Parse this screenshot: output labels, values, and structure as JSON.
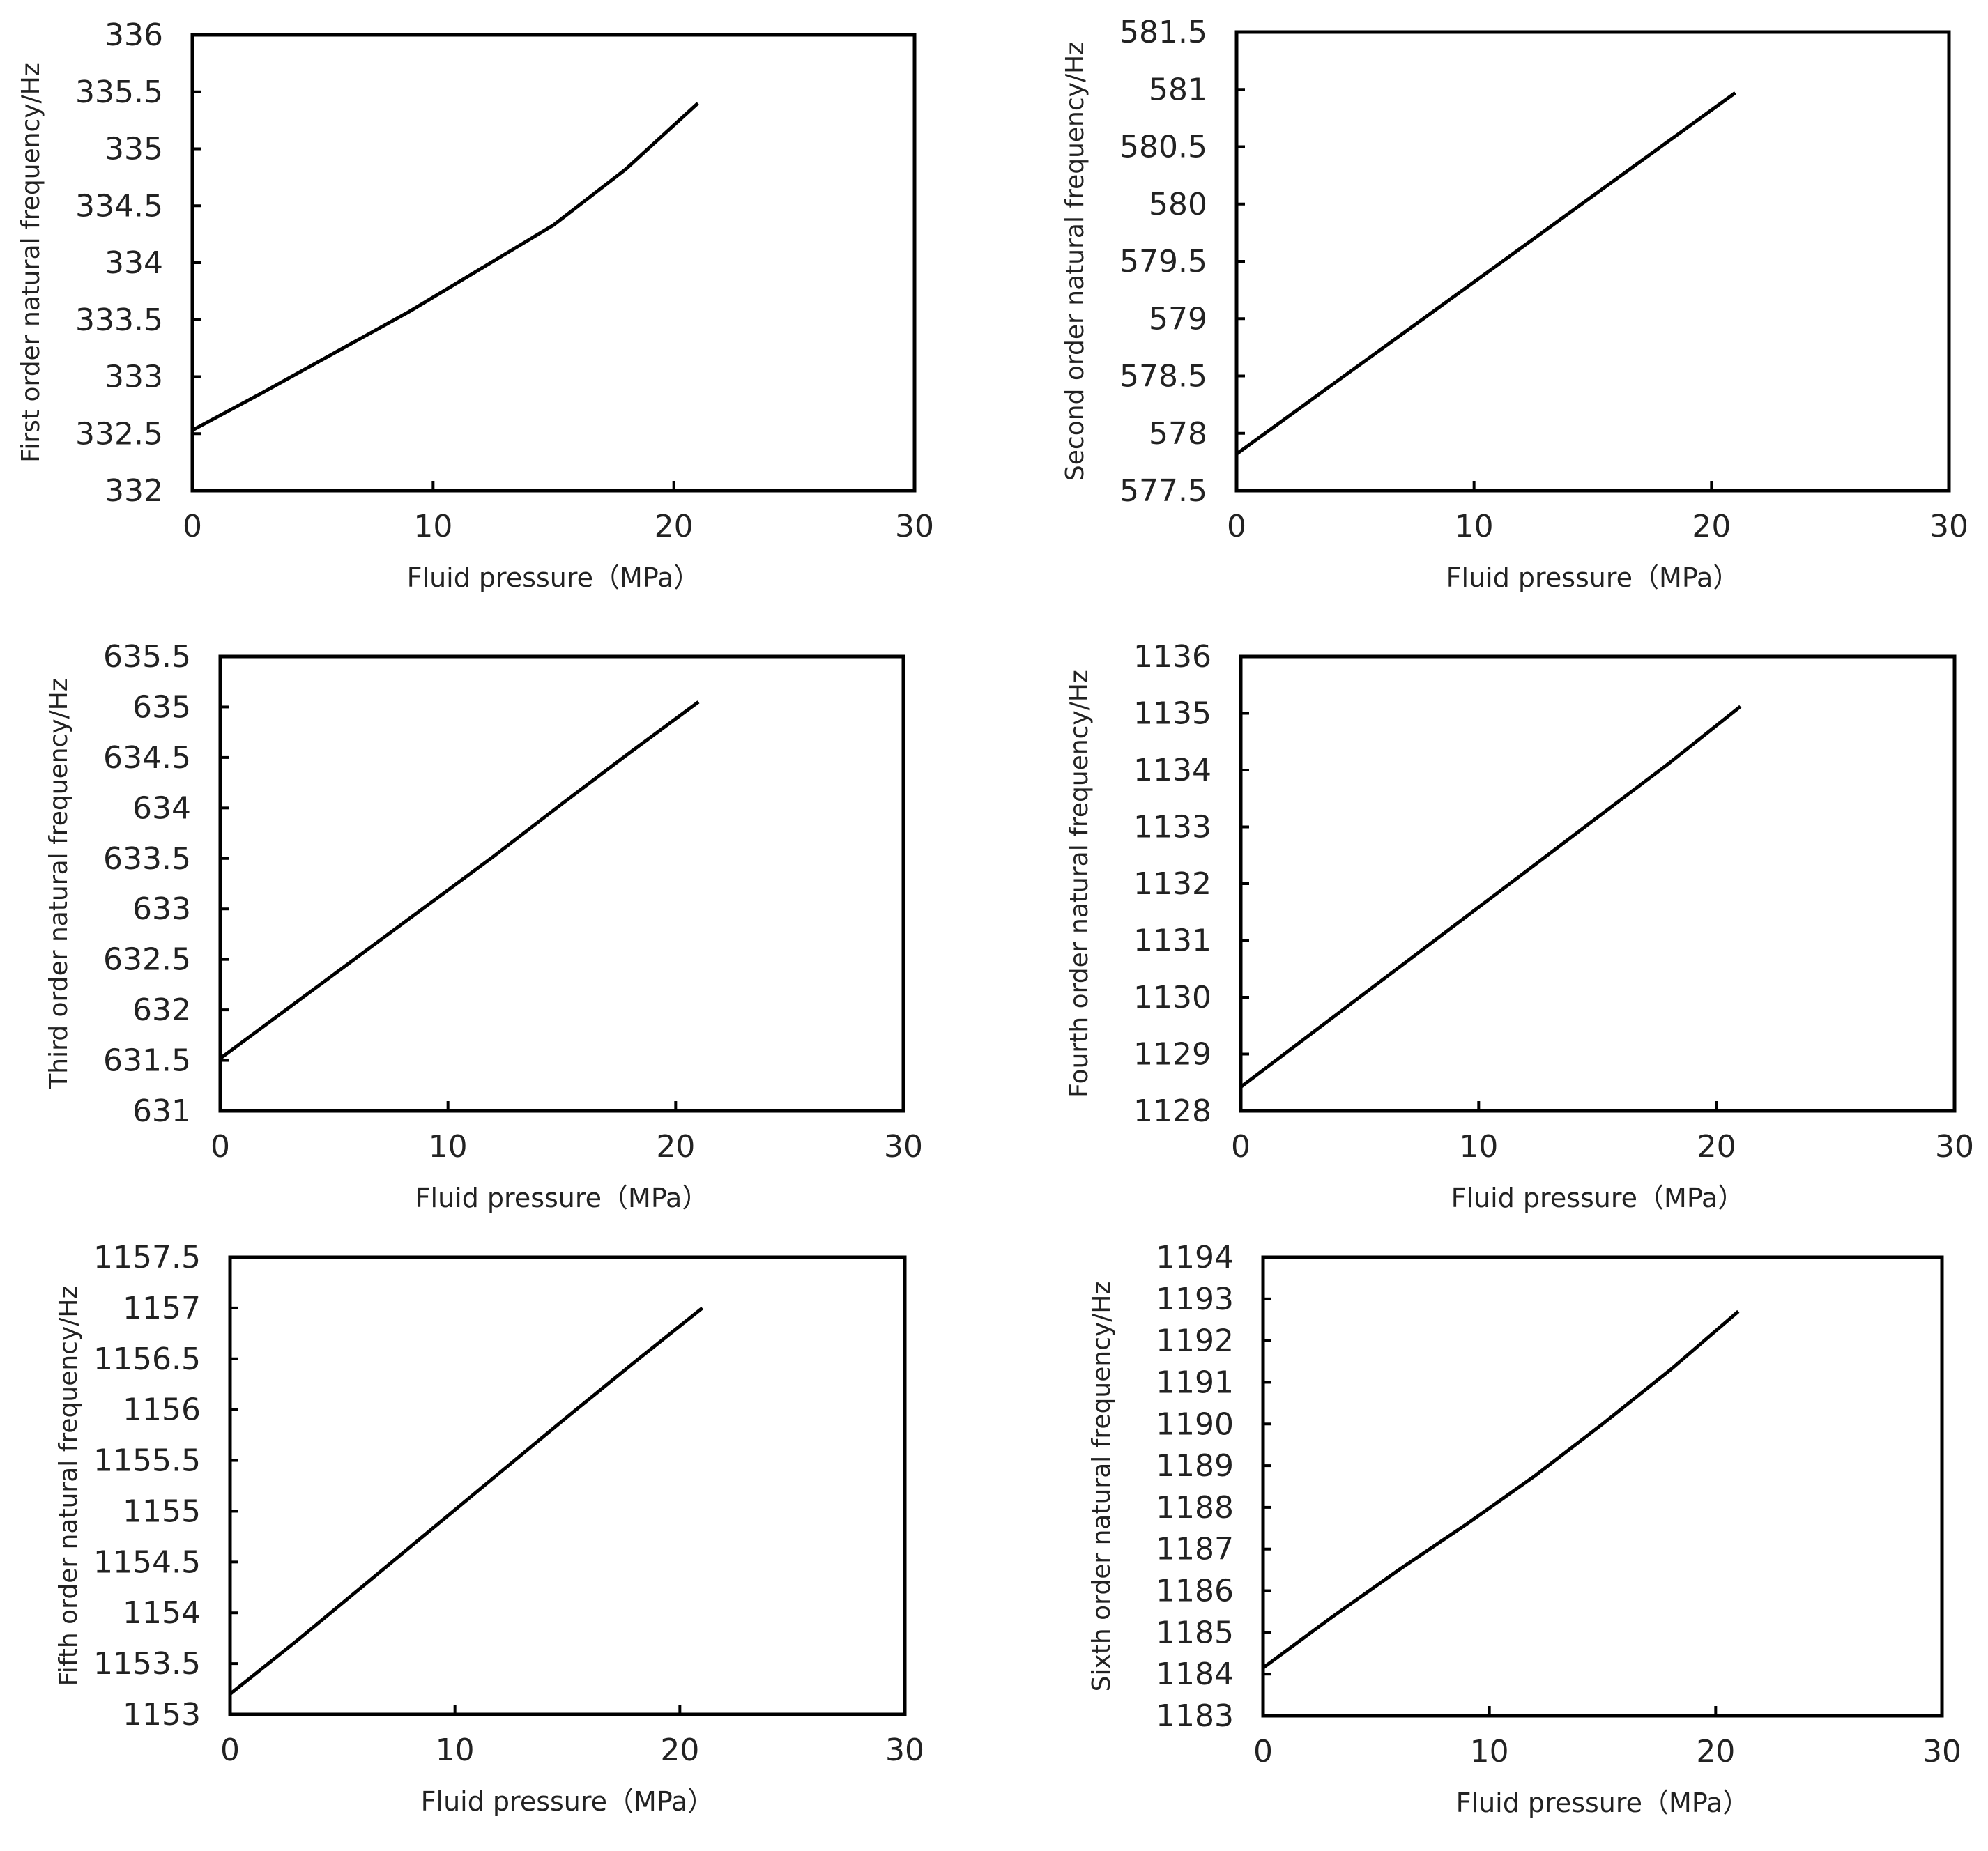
{
  "figure": {
    "line_color": "#000000",
    "frame_color": "#000000",
    "background": "#ffffff"
  },
  "chart_data": [
    {
      "type": "line",
      "xlabel": "Fluid pressure（MPa）",
      "ylabel": "First order natural frequency/Hz",
      "xlim": [
        0,
        30
      ],
      "ylim": [
        332,
        336
      ],
      "xticks": [
        "0",
        "10",
        "20",
        "30"
      ],
      "yticks": [
        "332",
        "332.5",
        "333",
        "333.5",
        "334",
        "334.5",
        "335",
        "335.5",
        "336"
      ],
      "grid": false,
      "series": [
        {
          "x": [
            0,
            3,
            6,
            9,
            12,
            15,
            18,
            21
          ],
          "y": [
            332.53,
            332.87,
            333.22,
            333.57,
            333.95,
            334.33,
            334.82,
            335.4
          ]
        }
      ]
    },
    {
      "type": "line",
      "xlabel": "Fluid pressure（MPa）",
      "ylabel": "Second order natural frequency/Hz",
      "xlim": [
        0,
        30
      ],
      "ylim": [
        577.5,
        581.5
      ],
      "xticks": [
        "0",
        "10",
        "20",
        "30"
      ],
      "yticks": [
        "577.5",
        "578",
        "578.5",
        "579",
        "579.5",
        "580",
        "580.5",
        "581",
        "581.5"
      ],
      "grid": false,
      "series": [
        {
          "x": [
            0,
            3,
            6,
            9,
            12,
            15,
            18,
            21
          ],
          "y": [
            577.82,
            578.27,
            578.72,
            579.17,
            579.62,
            580.07,
            580.52,
            580.97
          ]
        }
      ]
    },
    {
      "type": "line",
      "xlabel": "Fluid pressure（MPa）",
      "ylabel": "Third order natural frequency/Hz",
      "xlim": [
        0,
        30
      ],
      "ylim": [
        631,
        635.5
      ],
      "xticks": [
        "0",
        "10",
        "20",
        "30"
      ],
      "yticks": [
        "631",
        "631.5",
        "632",
        "632.5",
        "633",
        "633.5",
        "634",
        "634.5",
        "635",
        "635.5"
      ],
      "grid": false,
      "series": [
        {
          "x": [
            0,
            3,
            6,
            9,
            12,
            15,
            18,
            21
          ],
          "y": [
            631.52,
            632.02,
            632.52,
            633.02,
            633.52,
            634.04,
            634.55,
            635.05
          ]
        }
      ]
    },
    {
      "type": "line",
      "xlabel": "Fluid pressure（MPa）",
      "ylabel": "Fourth order natural frequency/Hz",
      "xlim": [
        0,
        30
      ],
      "ylim": [
        1128,
        1136
      ],
      "xticks": [
        "0",
        "10",
        "20",
        "30"
      ],
      "yticks": [
        "1128",
        "1129",
        "1130",
        "1131",
        "1132",
        "1133",
        "1134",
        "1135",
        "1136"
      ],
      "grid": false,
      "series": [
        {
          "x": [
            0,
            3,
            6,
            9,
            12,
            15,
            18,
            21
          ],
          "y": [
            1128.42,
            1129.37,
            1130.32,
            1131.27,
            1132.22,
            1133.17,
            1134.12,
            1135.12
          ]
        }
      ]
    },
    {
      "type": "line",
      "xlabel": "Fluid pressure（MPa）",
      "ylabel": "Fifth order natural frequency/Hz",
      "xlim": [
        0,
        30
      ],
      "ylim": [
        1153,
        1157.5
      ],
      "xticks": [
        "0",
        "10",
        "20",
        "30"
      ],
      "yticks": [
        "1153",
        "1153.5",
        "1154",
        "1154.5",
        "1155",
        "1155.5",
        "1156",
        "1156.5",
        "1157",
        "1157.5"
      ],
      "grid": false,
      "series": [
        {
          "x": [
            0,
            3,
            6,
            9,
            12,
            15,
            18,
            21
          ],
          "y": [
            1153.2,
            1153.73,
            1154.28,
            1154.83,
            1155.38,
            1155.93,
            1156.47,
            1157.0
          ]
        }
      ]
    },
    {
      "type": "line",
      "xlabel": "Fluid pressure（MPa）",
      "ylabel": "Sixth order natural frequency/Hz",
      "xlim": [
        0,
        30
      ],
      "ylim": [
        1183,
        1194
      ],
      "xticks": [
        "0",
        "10",
        "20",
        "30"
      ],
      "yticks": [
        "1183",
        "1184",
        "1185",
        "1186",
        "1187",
        "1188",
        "1189",
        "1190",
        "1191",
        "1192",
        "1193",
        "1194"
      ],
      "grid": false,
      "series": [
        {
          "x": [
            0,
            3,
            6,
            9,
            12,
            15,
            18,
            21
          ],
          "y": [
            1184.15,
            1185.35,
            1186.5,
            1187.6,
            1188.75,
            1190.0,
            1191.3,
            1192.7
          ]
        }
      ]
    }
  ]
}
